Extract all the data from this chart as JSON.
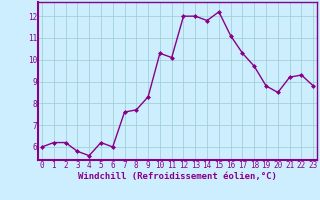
{
  "x": [
    0,
    1,
    2,
    3,
    4,
    5,
    6,
    7,
    8,
    9,
    10,
    11,
    12,
    13,
    14,
    15,
    16,
    17,
    18,
    19,
    20,
    21,
    22,
    23
  ],
  "y": [
    6.0,
    6.2,
    6.2,
    5.8,
    5.6,
    6.2,
    6.0,
    7.6,
    7.7,
    8.3,
    10.3,
    10.1,
    12.0,
    12.0,
    11.8,
    12.2,
    11.1,
    10.3,
    9.7,
    8.8,
    8.5,
    9.2,
    9.3,
    8.8
  ],
  "line_color": "#880088",
  "marker": "D",
  "marker_size": 2.0,
  "bg_color": "#cceeff",
  "grid_color": "#99cccc",
  "xlabel": "Windchill (Refroidissement éolien,°C)",
  "xlabel_color": "#880088",
  "xlabel_fontsize": 6.5,
  "ylabel_ticks": [
    6,
    7,
    8,
    9,
    10,
    11,
    12
  ],
  "xtick_labels": [
    "0",
    "1",
    "2",
    "3",
    "4",
    "5",
    "6",
    "7",
    "8",
    "9",
    "10",
    "11",
    "12",
    "13",
    "14",
    "15",
    "16",
    "17",
    "18",
    "19",
    "20",
    "21",
    "22",
    "23"
  ],
  "xlim": [
    -0.3,
    23.3
  ],
  "ylim": [
    5.4,
    12.65
  ],
  "tick_fontsize": 5.5,
  "line_width": 1.0,
  "spine_color": "#880088"
}
